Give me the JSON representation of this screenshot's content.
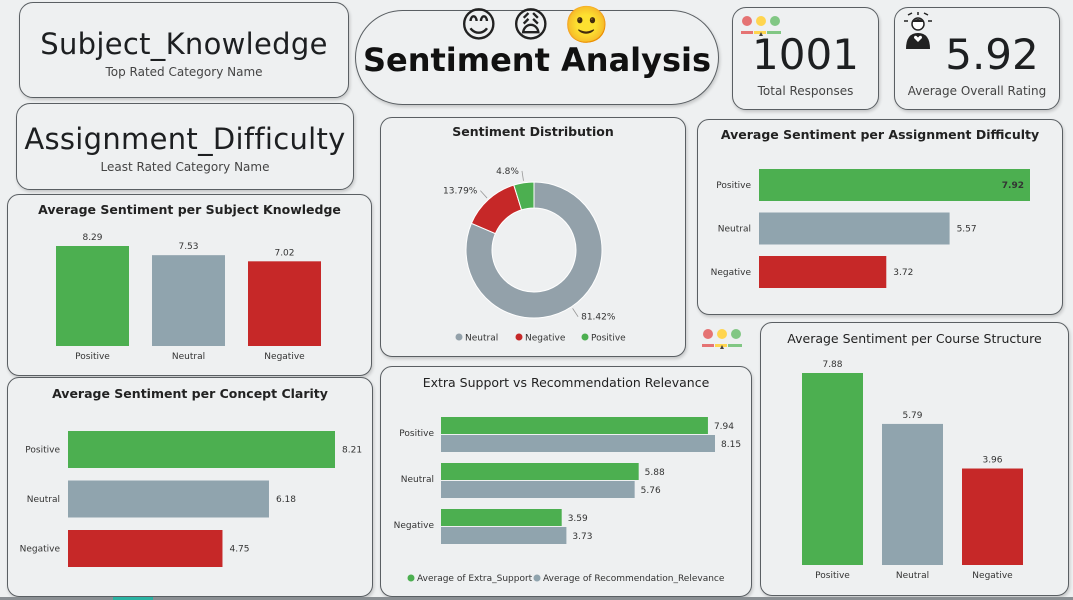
{
  "kpis": {
    "top_category": {
      "value": "Subject_Knowledge",
      "label": "Top Rated Category Name"
    },
    "least_category": {
      "value": "Assignment_Difficulty",
      "label": "Least Rated Category Name"
    },
    "total_responses": {
      "value": "1001",
      "label": "Total Responses"
    },
    "avg_rating": {
      "value": "5.92",
      "label": "Average Overall Rating"
    }
  },
  "header": {
    "title": "Sentiment Analysis",
    "emojis": [
      "😊",
      "😩",
      "🙂"
    ]
  },
  "colors": {
    "positive": "#4caf50",
    "neutral": "#90a4ae",
    "negative": "#c62828",
    "donut_neutral": "#93a1aa"
  },
  "chart_data": [
    {
      "id": "subject_knowledge",
      "type": "bar",
      "title": "Average Sentiment per Subject Knowledge",
      "categories": [
        "Positive",
        "Neutral",
        "Negative"
      ],
      "values": [
        8.29,
        7.53,
        7.02
      ],
      "value_labels": [
        "8.29",
        "7.53",
        "7.02"
      ]
    },
    {
      "id": "sentiment_distribution",
      "type": "pie",
      "title": "Sentiment Distribution",
      "categories": [
        "Neutral",
        "Negative",
        "Positive"
      ],
      "values": [
        81.42,
        13.79,
        4.8
      ],
      "value_labels": [
        "81.42%",
        "13.79%",
        "4.8%"
      ],
      "legend_position": "bottom"
    },
    {
      "id": "assignment_difficulty",
      "type": "bar",
      "orientation": "horizontal",
      "title": "Average Sentiment per Assignment Difficulty",
      "categories": [
        "Positive",
        "Neutral",
        "Negative"
      ],
      "values": [
        7.92,
        5.57,
        3.72
      ],
      "value_labels": [
        "7.92",
        "5.57",
        "3.72"
      ]
    },
    {
      "id": "concept_clarity",
      "type": "bar",
      "orientation": "horizontal",
      "title": "Average Sentiment per Concept Clarity",
      "categories": [
        "Positive",
        "Neutral",
        "Negative"
      ],
      "values": [
        8.21,
        6.18,
        4.75
      ],
      "value_labels": [
        "8.21",
        "6.18",
        "4.75"
      ]
    },
    {
      "id": "extra_support",
      "type": "bar",
      "orientation": "horizontal",
      "title": "Extra Support vs Recommendation Relevance",
      "categories": [
        "Positive",
        "Neutral",
        "Negative"
      ],
      "series": [
        {
          "name": "Average of Extra_Support",
          "values": [
            7.94,
            5.88,
            3.59
          ],
          "value_labels": [
            "7.94",
            "5.88",
            "3.59"
          ]
        },
        {
          "name": "Average of Recommendation_Relevance",
          "values": [
            8.15,
            5.76,
            3.73
          ],
          "value_labels": [
            "8.15",
            "5.76",
            "3.73"
          ]
        }
      ],
      "legend_position": "bottom"
    },
    {
      "id": "course_structure",
      "type": "bar",
      "title": "Average Sentiment per Course Structure",
      "categories": [
        "Positive",
        "Neutral",
        "Negative"
      ],
      "values": [
        7.88,
        5.79,
        3.96
      ],
      "value_labels": [
        "7.88",
        "5.79",
        "3.96"
      ]
    }
  ]
}
